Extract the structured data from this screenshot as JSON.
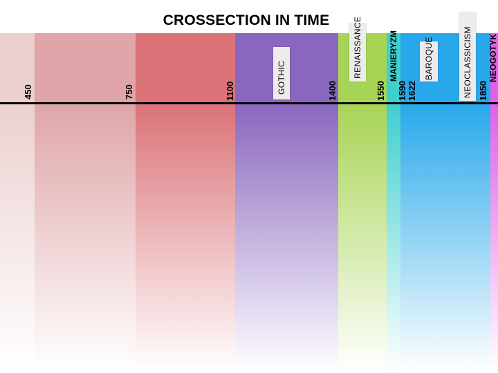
{
  "title": "CROSSECTION IN TIME",
  "bands": [
    {
      "name": "band-450",
      "color": "#ecd0d0"
    },
    {
      "name": "band-750",
      "color": "#dfa5a8"
    },
    {
      "name": "band-1100",
      "color": "#db7378"
    },
    {
      "name": "band-gothic",
      "color": "#8a67bf"
    },
    {
      "name": "band-renaissance",
      "color": "#a8d455"
    },
    {
      "name": "band-manieryzm",
      "color": "#3fcfcf"
    },
    {
      "name": "band-baroque",
      "color": "#28a8ea"
    },
    {
      "name": "band-neogotyk",
      "color": "#e060e8"
    }
  ],
  "years": [
    {
      "name": "year-450",
      "label": "450"
    },
    {
      "name": "year-750",
      "label": "750"
    },
    {
      "name": "year-1100",
      "label": "1100"
    },
    {
      "name": "year-1400",
      "label": "1400"
    },
    {
      "name": "year-1550",
      "label": "1550"
    },
    {
      "name": "year-1590",
      "label": "1590"
    },
    {
      "name": "year-1622",
      "label": "1622"
    },
    {
      "name": "year-1850",
      "label": "1850"
    }
  ],
  "periods": {
    "gothic": "GOTHIC",
    "renaissance": "RENAISSANCE",
    "manieryzm": "MANIERYZM",
    "baroque": "BAROQUE",
    "neoclassicism": "NEOCLASSICISM",
    "neogotyk": "NEOGOTYK"
  }
}
